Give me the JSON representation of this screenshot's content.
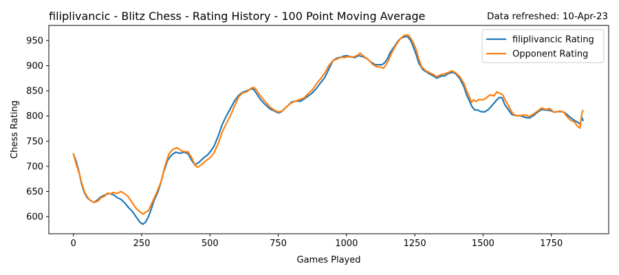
{
  "chart_data": {
    "type": "line",
    "title": "filiplivancic - Blitz Chess - Rating History - 100 Point Moving Average",
    "annotation": "Data refreshed: 10-Apr-23",
    "xlabel": "Games Played",
    "ylabel": "Chess Rating",
    "xlim": [
      -90,
      1960
    ],
    "ylim": [
      566,
      980
    ],
    "xticks": [
      0,
      250,
      500,
      750,
      1000,
      1250,
      1500,
      1750
    ],
    "yticks": [
      600,
      650,
      700,
      750,
      800,
      850,
      900,
      950
    ],
    "grid": false,
    "legend_position": "top-right",
    "series": [
      {
        "name": "filiplivancic Rating",
        "color": "#1f77b4",
        "points": [
          [
            0,
            725
          ],
          [
            10,
            710
          ],
          [
            20,
            690
          ],
          [
            30,
            665
          ],
          [
            40,
            648
          ],
          [
            50,
            638
          ],
          [
            60,
            633
          ],
          [
            75,
            628
          ],
          [
            90,
            634
          ],
          [
            100,
            639
          ],
          [
            115,
            643
          ],
          [
            130,
            646
          ],
          [
            145,
            644
          ],
          [
            160,
            638
          ],
          [
            175,
            634
          ],
          [
            190,
            626
          ],
          [
            200,
            619
          ],
          [
            215,
            611
          ],
          [
            230,
            599
          ],
          [
            245,
            588
          ],
          [
            255,
            585
          ],
          [
            265,
            590
          ],
          [
            275,
            600
          ],
          [
            285,
            615
          ],
          [
            295,
            632
          ],
          [
            310,
            650
          ],
          [
            320,
            667
          ],
          [
            330,
            688
          ],
          [
            345,
            712
          ],
          [
            360,
            723
          ],
          [
            375,
            728
          ],
          [
            390,
            726
          ],
          [
            405,
            728
          ],
          [
            420,
            725
          ],
          [
            435,
            710
          ],
          [
            445,
            703
          ],
          [
            460,
            708
          ],
          [
            475,
            716
          ],
          [
            490,
            722
          ],
          [
            500,
            728
          ],
          [
            515,
            740
          ],
          [
            530,
            760
          ],
          [
            545,
            783
          ],
          [
            560,
            800
          ],
          [
            575,
            815
          ],
          [
            590,
            830
          ],
          [
            605,
            841
          ],
          [
            620,
            847
          ],
          [
            635,
            850
          ],
          [
            650,
            854
          ],
          [
            660,
            853
          ],
          [
            670,
            845
          ],
          [
            685,
            833
          ],
          [
            700,
            824
          ],
          [
            720,
            814
          ],
          [
            740,
            809
          ],
          [
            750,
            806
          ],
          [
            760,
            808
          ],
          [
            780,
            818
          ],
          [
            800,
            828
          ],
          [
            820,
            830
          ],
          [
            830,
            829
          ],
          [
            845,
            834
          ],
          [
            860,
            840
          ],
          [
            875,
            846
          ],
          [
            890,
            855
          ],
          [
            905,
            866
          ],
          [
            920,
            876
          ],
          [
            935,
            893
          ],
          [
            950,
            910
          ],
          [
            965,
            915
          ],
          [
            980,
            917
          ],
          [
            990,
            919
          ],
          [
            1000,
            920
          ],
          [
            1015,
            918
          ],
          [
            1030,
            916
          ],
          [
            1045,
            920
          ],
          [
            1060,
            918
          ],
          [
            1075,
            914
          ],
          [
            1090,
            907
          ],
          [
            1105,
            902
          ],
          [
            1120,
            902
          ],
          [
            1130,
            902
          ],
          [
            1140,
            906
          ],
          [
            1150,
            914
          ],
          [
            1160,
            926
          ],
          [
            1175,
            938
          ],
          [
            1190,
            950
          ],
          [
            1200,
            955
          ],
          [
            1215,
            958
          ],
          [
            1225,
            957
          ],
          [
            1235,
            950
          ],
          [
            1245,
            937
          ],
          [
            1255,
            922
          ],
          [
            1265,
            905
          ],
          [
            1280,
            892
          ],
          [
            1300,
            885
          ],
          [
            1320,
            879
          ],
          [
            1330,
            875
          ],
          [
            1345,
            879
          ],
          [
            1360,
            880
          ],
          [
            1375,
            885
          ],
          [
            1390,
            887
          ],
          [
            1400,
            884
          ],
          [
            1415,
            874
          ],
          [
            1430,
            858
          ],
          [
            1440,
            842
          ],
          [
            1450,
            830
          ],
          [
            1460,
            818
          ],
          [
            1470,
            812
          ],
          [
            1480,
            812
          ],
          [
            1490,
            809
          ],
          [
            1505,
            808
          ],
          [
            1520,
            813
          ],
          [
            1535,
            822
          ],
          [
            1550,
            832
          ],
          [
            1560,
            837
          ],
          [
            1570,
            836
          ],
          [
            1580,
            822
          ],
          [
            1595,
            811
          ],
          [
            1605,
            803
          ],
          [
            1620,
            801
          ],
          [
            1640,
            800
          ],
          [
            1655,
            797
          ],
          [
            1670,
            796
          ],
          [
            1685,
            801
          ],
          [
            1700,
            808
          ],
          [
            1715,
            813
          ],
          [
            1730,
            812
          ],
          [
            1745,
            811
          ],
          [
            1760,
            808
          ],
          [
            1780,
            809
          ],
          [
            1795,
            808
          ],
          [
            1805,
            804
          ],
          [
            1820,
            797
          ],
          [
            1835,
            791
          ],
          [
            1845,
            788
          ],
          [
            1855,
            784
          ],
          [
            1862,
            797
          ],
          [
            1866,
            791
          ]
        ]
      },
      {
        "name": "Opponent Rating",
        "color": "#ff7f0e",
        "points": [
          [
            0,
            725
          ],
          [
            10,
            705
          ],
          [
            20,
            688
          ],
          [
            30,
            668
          ],
          [
            40,
            650
          ],
          [
            50,
            640
          ],
          [
            60,
            633
          ],
          [
            75,
            628
          ],
          [
            90,
            631
          ],
          [
            100,
            637
          ],
          [
            115,
            641
          ],
          [
            125,
            647
          ],
          [
            135,
            645
          ],
          [
            145,
            648
          ],
          [
            160,
            646
          ],
          [
            175,
            650
          ],
          [
            185,
            646
          ],
          [
            200,
            640
          ],
          [
            215,
            628
          ],
          [
            230,
            616
          ],
          [
            245,
            609
          ],
          [
            255,
            605
          ],
          [
            265,
            609
          ],
          [
            275,
            612
          ],
          [
            290,
            630
          ],
          [
            305,
            648
          ],
          [
            320,
            668
          ],
          [
            335,
            700
          ],
          [
            350,
            725
          ],
          [
            365,
            734
          ],
          [
            380,
            737
          ],
          [
            395,
            731
          ],
          [
            405,
            729
          ],
          [
            420,
            729
          ],
          [
            435,
            715
          ],
          [
            445,
            702
          ],
          [
            455,
            698
          ],
          [
            470,
            704
          ],
          [
            485,
            711
          ],
          [
            500,
            717
          ],
          [
            515,
            727
          ],
          [
            530,
            745
          ],
          [
            545,
            768
          ],
          [
            560,
            785
          ],
          [
            575,
            801
          ],
          [
            590,
            820
          ],
          [
            605,
            838
          ],
          [
            620,
            846
          ],
          [
            635,
            848
          ],
          [
            650,
            855
          ],
          [
            660,
            857
          ],
          [
            670,
            852
          ],
          [
            685,
            840
          ],
          [
            700,
            830
          ],
          [
            720,
            818
          ],
          [
            735,
            812
          ],
          [
            750,
            808
          ],
          [
            765,
            810
          ],
          [
            780,
            818
          ],
          [
            795,
            825
          ],
          [
            810,
            829
          ],
          [
            825,
            832
          ],
          [
            845,
            836
          ],
          [
            860,
            845
          ],
          [
            875,
            852
          ],
          [
            890,
            864
          ],
          [
            905,
            874
          ],
          [
            920,
            885
          ],
          [
            935,
            900
          ],
          [
            950,
            910
          ],
          [
            965,
            913
          ],
          [
            980,
            917
          ],
          [
            990,
            916
          ],
          [
            1005,
            918
          ],
          [
            1020,
            917
          ],
          [
            1035,
            919
          ],
          [
            1050,
            925
          ],
          [
            1065,
            918
          ],
          [
            1080,
            912
          ],
          [
            1095,
            903
          ],
          [
            1110,
            898
          ],
          [
            1125,
            897
          ],
          [
            1135,
            895
          ],
          [
            1145,
            902
          ],
          [
            1155,
            912
          ],
          [
            1165,
            925
          ],
          [
            1180,
            940
          ],
          [
            1195,
            952
          ],
          [
            1210,
            960
          ],
          [
            1225,
            961
          ],
          [
            1235,
            955
          ],
          [
            1245,
            945
          ],
          [
            1255,
            932
          ],
          [
            1265,
            913
          ],
          [
            1275,
            898
          ],
          [
            1290,
            890
          ],
          [
            1305,
            886
          ],
          [
            1320,
            882
          ],
          [
            1330,
            878
          ],
          [
            1345,
            882
          ],
          [
            1360,
            884
          ],
          [
            1375,
            887
          ],
          [
            1385,
            890
          ],
          [
            1400,
            886
          ],
          [
            1415,
            878
          ],
          [
            1430,
            865
          ],
          [
            1440,
            850
          ],
          [
            1450,
            838
          ],
          [
            1458,
            827
          ],
          [
            1465,
            832
          ],
          [
            1475,
            829
          ],
          [
            1485,
            833
          ],
          [
            1500,
            832
          ],
          [
            1510,
            835
          ],
          [
            1525,
            842
          ],
          [
            1540,
            840
          ],
          [
            1550,
            848
          ],
          [
            1562,
            845
          ],
          [
            1572,
            842
          ],
          [
            1585,
            828
          ],
          [
            1600,
            813
          ],
          [
            1610,
            804
          ],
          [
            1625,
            800
          ],
          [
            1640,
            801
          ],
          [
            1655,
            802
          ],
          [
            1670,
            799
          ],
          [
            1685,
            804
          ],
          [
            1700,
            810
          ],
          [
            1715,
            816
          ],
          [
            1730,
            813
          ],
          [
            1745,
            815
          ],
          [
            1760,
            807
          ],
          [
            1780,
            810
          ],
          [
            1795,
            808
          ],
          [
            1805,
            800
          ],
          [
            1820,
            792
          ],
          [
            1835,
            788
          ],
          [
            1845,
            780
          ],
          [
            1855,
            776
          ],
          [
            1862,
            806
          ],
          [
            1866,
            811
          ]
        ]
      }
    ]
  }
}
